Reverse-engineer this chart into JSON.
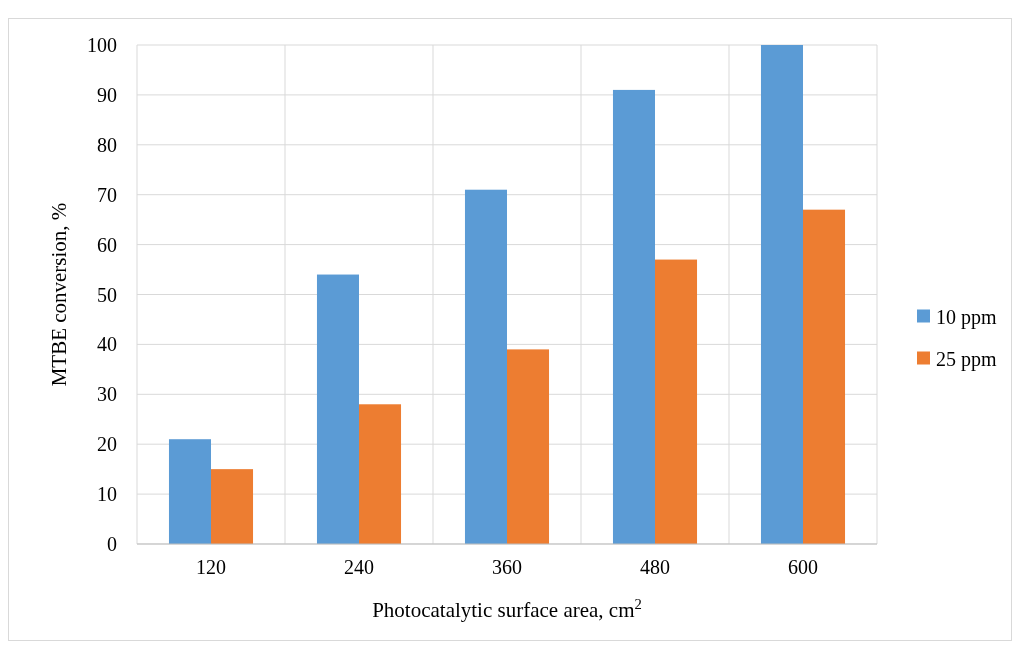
{
  "chart_data": {
    "type": "bar",
    "xlabel": "Photocatalytic surface area, cm$^{2}$",
    "ylabel": "MTBE conversion, %",
    "categories": [
      "120",
      "240",
      "360",
      "480",
      "600"
    ],
    "series": [
      {
        "name": "10 ppm",
        "color": "#5b9bd5",
        "values": [
          21,
          54,
          71,
          91,
          100
        ]
      },
      {
        "name": "25 ppm",
        "color": "#ed7d31",
        "values": [
          15,
          28,
          39,
          57,
          67
        ]
      }
    ],
    "ylim": [
      0,
      100
    ],
    "yticks": [
      0,
      10,
      20,
      30,
      40,
      50,
      60,
      70,
      80,
      90,
      100
    ],
    "grid": true,
    "legend": "right"
  }
}
